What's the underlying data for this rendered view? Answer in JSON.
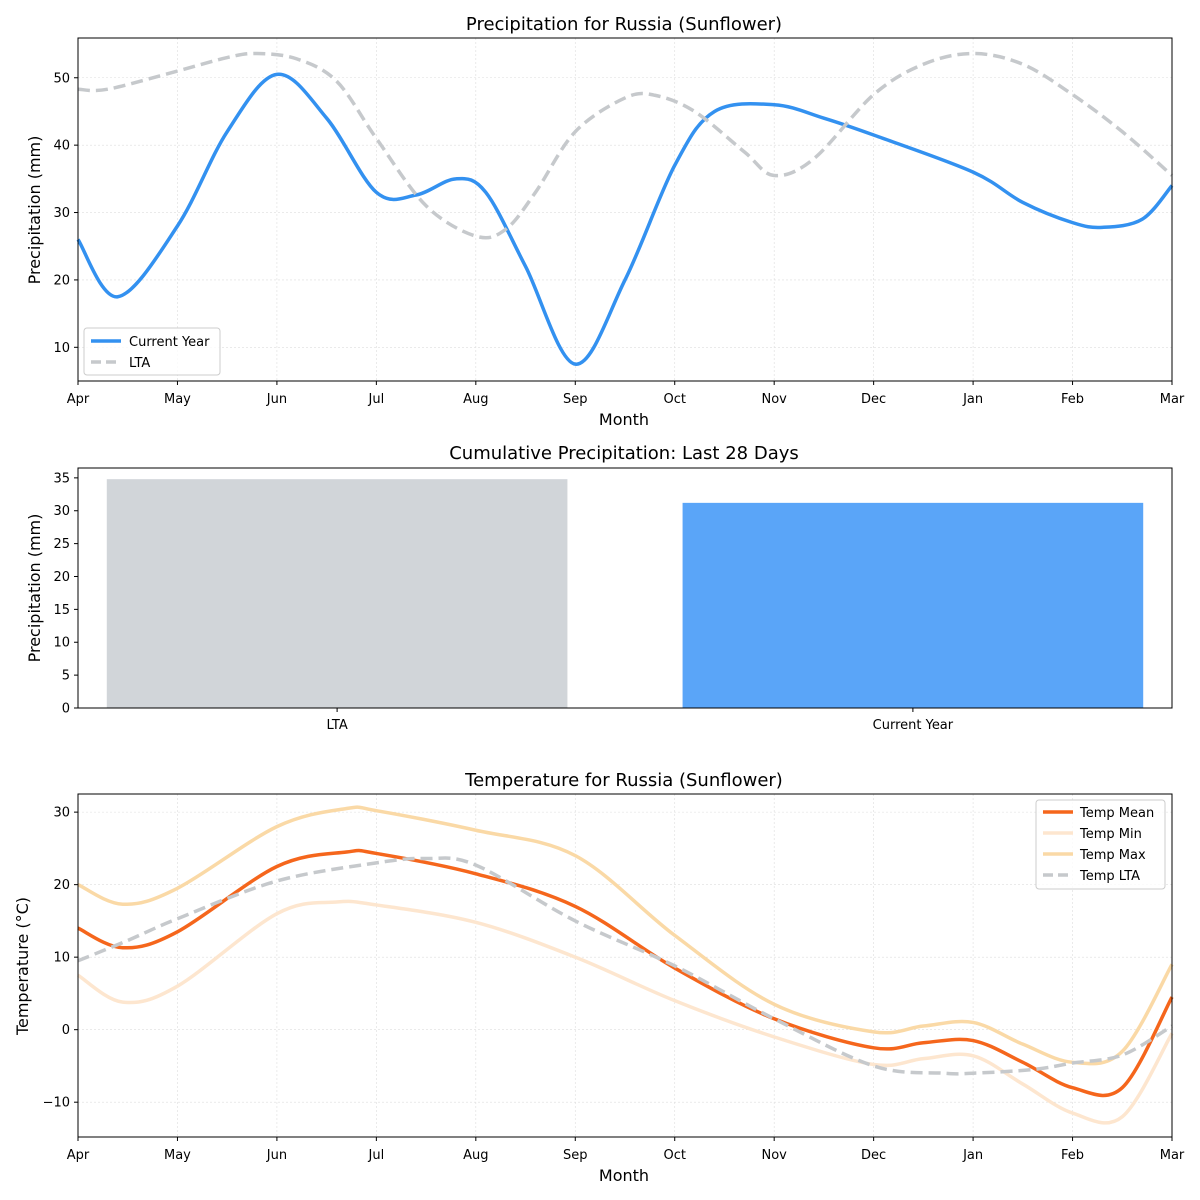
{
  "chart_data": [
    {
      "type": "line",
      "title": "Precipitation for Russia (Sunflower)",
      "xlabel": "Month",
      "ylabel": "Precipitation (mm)",
      "x_ticks": [
        "Apr",
        "May",
        "Jun",
        "Jul",
        "Aug",
        "Sep",
        "Oct",
        "Nov",
        "Dec",
        "Jan",
        "Feb",
        "Mar"
      ],
      "xlim": [
        0,
        11
      ],
      "ylim": [
        5,
        55.9
      ],
      "y_ticks": [
        10,
        20,
        30,
        40,
        50
      ],
      "grid": true,
      "legend_position": "lower-left",
      "series": [
        {
          "name": "Current Year",
          "color": "#3391f0",
          "style": "solid",
          "points": [
            [
              0,
              26
            ],
            [
              0.4,
              17.5
            ],
            [
              1,
              28
            ],
            [
              1.5,
              42
            ],
            [
              2,
              50.5
            ],
            [
              2.5,
              44
            ],
            [
              3,
              33
            ],
            [
              3.4,
              32.6
            ],
            [
              3.8,
              35
            ],
            [
              4.1,
              33
            ],
            [
              4.5,
              22
            ],
            [
              5,
              7.5
            ],
            [
              5.5,
              20
            ],
            [
              6,
              37
            ],
            [
              6.4,
              45
            ],
            [
              7,
              46
            ],
            [
              7.5,
              44
            ],
            [
              8,
              41.5
            ],
            [
              9,
              36
            ],
            [
              9.5,
              31.5
            ],
            [
              10,
              28.5
            ],
            [
              10.3,
              27.8
            ],
            [
              10.7,
              29
            ],
            [
              11,
              34
            ]
          ]
        },
        {
          "name": "LTA",
          "color": "#c6c9cc",
          "style": "dashed",
          "points": [
            [
              0,
              48.3
            ],
            [
              0.3,
              48.3
            ],
            [
              1,
              51
            ],
            [
              1.5,
              53
            ],
            [
              1.8,
              53.6
            ],
            [
              2.2,
              52.8
            ],
            [
              2.6,
              49.5
            ],
            [
              3,
              41
            ],
            [
              3.5,
              31
            ],
            [
              4,
              26.5
            ],
            [
              4.3,
              27.5
            ],
            [
              4.6,
              33
            ],
            [
              5,
              42
            ],
            [
              5.5,
              47
            ],
            [
              5.8,
              47.4
            ],
            [
              6.2,
              45
            ],
            [
              6.7,
              39
            ],
            [
              7,
              35.5
            ],
            [
              7.4,
              38
            ],
            [
              8,
              47.5
            ],
            [
              8.5,
              52
            ],
            [
              9,
              53.6
            ],
            [
              9.5,
              52
            ],
            [
              10,
              47.5
            ],
            [
              10.5,
              42
            ],
            [
              11,
              35.5
            ]
          ]
        }
      ]
    },
    {
      "type": "bar",
      "title": "Cumulative Precipitation: Last 28 Days",
      "xlabel": "",
      "ylabel": "Precipitation (mm)",
      "categories": [
        "LTA",
        "Current Year"
      ],
      "values": [
        34.8,
        31.2
      ],
      "colors": [
        "#d1d5d9",
        "#5aa5f8"
      ],
      "ylim": [
        0,
        36.5
      ],
      "y_ticks": [
        0,
        5,
        10,
        15,
        20,
        25,
        30,
        35
      ],
      "grid": false
    },
    {
      "type": "line",
      "title": "Temperature for Russia (Sunflower)",
      "xlabel": "Month",
      "ylabel": "Temperature (°C)",
      "x_ticks": [
        "Apr",
        "May",
        "Jun",
        "Jul",
        "Aug",
        "Sep",
        "Oct",
        "Nov",
        "Dec",
        "Jan",
        "Feb",
        "Mar"
      ],
      "xlim": [
        0,
        11
      ],
      "ylim": [
        -14.8,
        32.5
      ],
      "y_ticks": [
        30,
        20,
        10,
        0,
        -10
      ],
      "y_tick_labels": [
        "30",
        "20",
        "10",
        "0",
        "−10"
      ],
      "grid": true,
      "legend_position": "top-right",
      "series": [
        {
          "name": "Temp Mean",
          "color": "#f5661c",
          "style": "solid",
          "points": [
            [
              0,
              14
            ],
            [
              0.45,
              11.3
            ],
            [
              1,
              13.5
            ],
            [
              2,
              22.5
            ],
            [
              2.7,
              24.5
            ],
            [
              3,
              24.3
            ],
            [
              4,
              21.5
            ],
            [
              5,
              17
            ],
            [
              6,
              8.5
            ],
            [
              7,
              1.5
            ],
            [
              8,
              -2.5
            ],
            [
              8.5,
              -1.8
            ],
            [
              9,
              -1.5
            ],
            [
              9.5,
              -4.5
            ],
            [
              10,
              -8
            ],
            [
              10.5,
              -8
            ],
            [
              11,
              4.5
            ]
          ]
        },
        {
          "name": "Temp Min",
          "color": "#fde6cf",
          "style": "solid",
          "points": [
            [
              0,
              7.5
            ],
            [
              0.45,
              3.8
            ],
            [
              1,
              6
            ],
            [
              2,
              16
            ],
            [
              2.6,
              17.6
            ],
            [
              3,
              17.2
            ],
            [
              4,
              14.8
            ],
            [
              5,
              10
            ],
            [
              6,
              4
            ],
            [
              7,
              -1
            ],
            [
              8,
              -4.8
            ],
            [
              8.5,
              -4
            ],
            [
              9,
              -3.6
            ],
            [
              9.5,
              -7.5
            ],
            [
              10,
              -11.5
            ],
            [
              10.5,
              -12
            ],
            [
              11,
              -0.5
            ]
          ]
        },
        {
          "name": "Temp Max",
          "color": "#fad9a6",
          "style": "solid",
          "points": [
            [
              0,
              20
            ],
            [
              0.45,
              17.3
            ],
            [
              1,
              19.5
            ],
            [
              2,
              28
            ],
            [
              2.7,
              30.5
            ],
            [
              3,
              30.2
            ],
            [
              4,
              27.5
            ],
            [
              5,
              24
            ],
            [
              6,
              13
            ],
            [
              7,
              3.5
            ],
            [
              8,
              -0.3
            ],
            [
              8.5,
              0.5
            ],
            [
              9,
              1
            ],
            [
              9.5,
              -2
            ],
            [
              10,
              -4.5
            ],
            [
              10.5,
              -3
            ],
            [
              11,
              9
            ]
          ]
        },
        {
          "name": "Temp LTA",
          "color": "#c6c9cc",
          "style": "dashed",
          "points": [
            [
              0,
              9.5
            ],
            [
              0.5,
              12.3
            ],
            [
              1,
              15.3
            ],
            [
              2,
              20.5
            ],
            [
              3,
              23
            ],
            [
              3.5,
              23.6
            ],
            [
              4,
              22.7
            ],
            [
              5,
              15
            ],
            [
              6,
              8.8
            ],
            [
              7,
              1.5
            ],
            [
              8,
              -5
            ],
            [
              8.7,
              -6
            ],
            [
              9,
              -6
            ],
            [
              9.6,
              -5.5
            ],
            [
              10,
              -4.6
            ],
            [
              10.5,
              -3.5
            ],
            [
              11,
              0.5
            ]
          ]
        }
      ]
    }
  ]
}
